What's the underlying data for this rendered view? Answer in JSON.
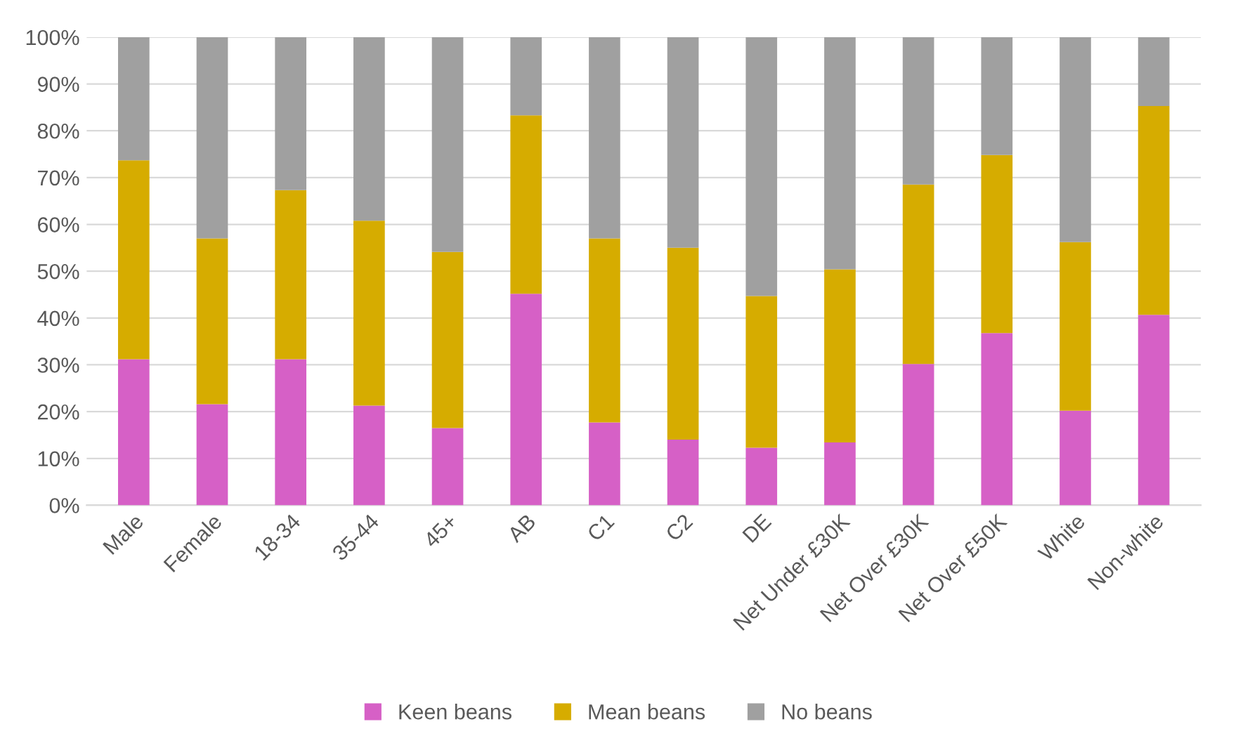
{
  "chart_data": {
    "type": "bar",
    "stacked": true,
    "categories": [
      "Male",
      "Female",
      "18-34",
      "35-44",
      "45+",
      "AB",
      "C1",
      "C2",
      "DE",
      "Net Under £30K",
      "Net Over £30K",
      "Net Over £50K",
      "White",
      "Non-white"
    ],
    "series": [
      {
        "name": "Keen beans",
        "color": "#d660c6",
        "values": [
          31.2,
          21.6,
          31.2,
          21.3,
          16.5,
          45.2,
          17.7,
          14.0,
          12.3,
          13.4,
          30.2,
          36.8,
          20.2,
          40.7
        ]
      },
      {
        "name": "Mean beans",
        "color": "#d6ac00",
        "values": [
          42.5,
          35.4,
          36.1,
          39.5,
          37.6,
          38.1,
          39.3,
          41.0,
          32.4,
          37.0,
          38.3,
          38.0,
          36.0,
          44.6
        ]
      },
      {
        "name": "No beans",
        "color": "#a0a0a0",
        "values": [
          26.3,
          43.0,
          32.7,
          39.2,
          45.9,
          16.7,
          43.0,
          45.0,
          55.3,
          49.6,
          31.5,
          25.2,
          43.8,
          14.7
        ]
      }
    ],
    "ylim": [
      0,
      100
    ],
    "yticks": [
      {
        "value": 0,
        "label": "0%"
      },
      {
        "value": 10,
        "label": "10%"
      },
      {
        "value": 20,
        "label": "20%"
      },
      {
        "value": 30,
        "label": "30%"
      },
      {
        "value": 40,
        "label": "40%"
      },
      {
        "value": 50,
        "label": "50%"
      },
      {
        "value": 60,
        "label": "60%"
      },
      {
        "value": 70,
        "label": "70%"
      },
      {
        "value": 80,
        "label": "80%"
      },
      {
        "value": 90,
        "label": "90%"
      },
      {
        "value": 100,
        "label": "100%"
      }
    ],
    "grid": "y",
    "legend": "bottom"
  }
}
